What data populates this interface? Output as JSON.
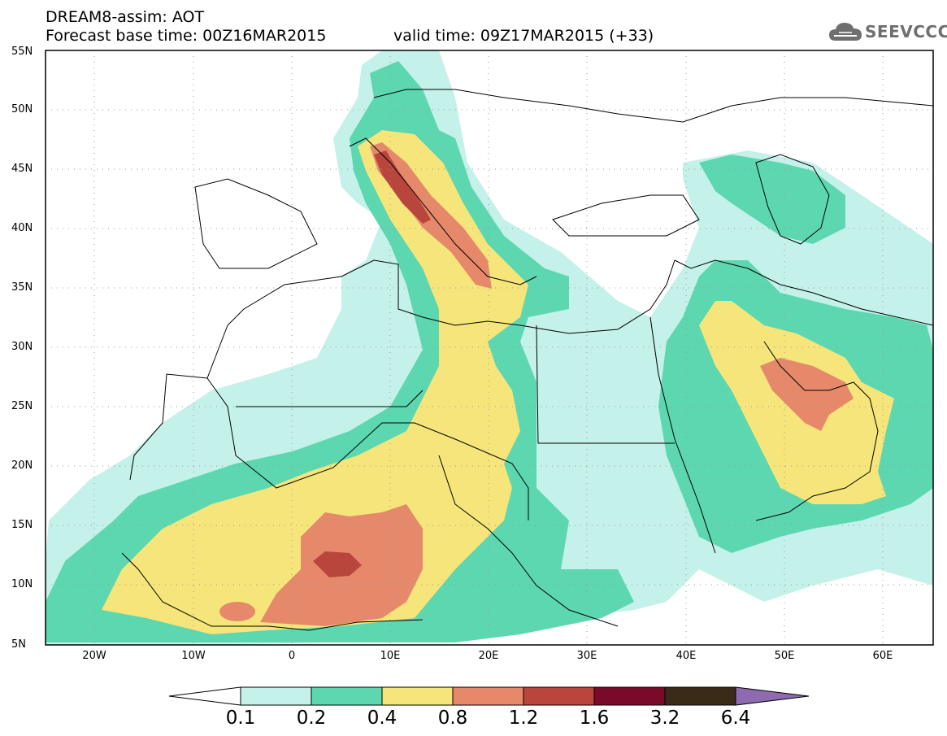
{
  "header": {
    "title": "DREAM8-assim: AOT",
    "base_time": "Forecast base time: 00Z16MAR2015",
    "valid_time": "valid time: 09Z17MAR2015 (+33)"
  },
  "logo": {
    "text": "SEEVCCC",
    "icon": "cloud-icon"
  },
  "map": {
    "variable": "AOT",
    "lat_ticks": [
      "55N",
      "50N",
      "45N",
      "40N",
      "35N",
      "30N",
      "25N",
      "20N",
      "15N",
      "10N",
      "5N"
    ],
    "lon_ticks": [
      "20W",
      "10W",
      "0",
      "10E",
      "20E",
      "30E",
      "40E",
      "50E",
      "60E"
    ],
    "lat_range": [
      5,
      55
    ],
    "lon_range": [
      -25,
      65
    ],
    "grid": "dotted",
    "colors": {
      "c0": "#c4f1ea",
      "c1": "#5dd7b0",
      "c2": "#f5e57a",
      "c3": "#e6896b",
      "c4": "#b8463d",
      "c5": "#7a0a2a",
      "c6": "#3a2a18",
      "c7": "#8e6bb0"
    }
  },
  "colorbar": {
    "labels": [
      "0.1",
      "0.2",
      "0.4",
      "0.8",
      "1.2",
      "1.6",
      "3.2",
      "6.4"
    ],
    "colors": [
      "#ffffff",
      "#c4f1ea",
      "#5dd7b0",
      "#f5e57a",
      "#e6896b",
      "#b8463d",
      "#7a0a2a",
      "#3a2a18",
      "#8e6bb0"
    ]
  }
}
